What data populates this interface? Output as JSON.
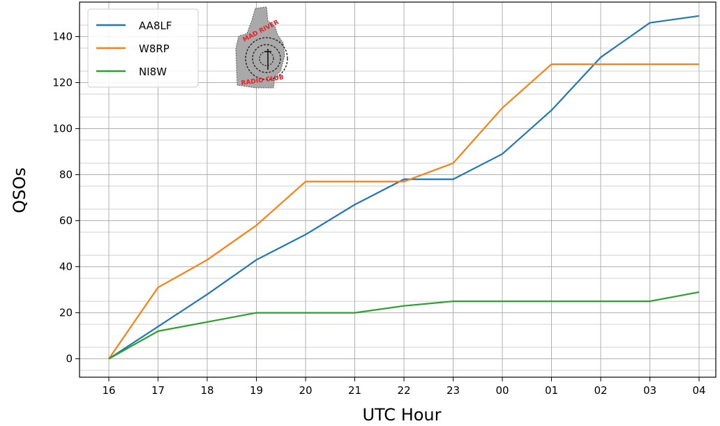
{
  "chart_data": {
    "type": "line",
    "title": "",
    "xlabel": "UTC Hour",
    "ylabel": "QSOs",
    "categories": [
      "16",
      "17",
      "18",
      "19",
      "20",
      "21",
      "22",
      "23",
      "00",
      "01",
      "02",
      "03",
      "04"
    ],
    "yticks": [
      0,
      20,
      40,
      60,
      80,
      100,
      120,
      140
    ],
    "ylim": [
      -8,
      155
    ],
    "grid": true,
    "minor_grid": true,
    "legend_position": "top-left",
    "series": [
      {
        "name": "AA8LF",
        "color": "#1f77b4",
        "values": [
          0,
          14,
          28,
          43,
          54,
          67,
          78,
          78,
          89,
          108,
          131,
          146,
          149
        ]
      },
      {
        "name": "W8RP",
        "color": "#ff7f0e",
        "values": [
          0,
          31,
          43,
          58,
          77,
          77,
          77,
          85,
          109,
          128,
          128,
          128,
          128
        ]
      },
      {
        "name": "NI8W",
        "color": "#2ca02c",
        "values": [
          0,
          12,
          16,
          20,
          20,
          20,
          23,
          25,
          25,
          25,
          25,
          25,
          29
        ]
      }
    ]
  },
  "logo": {
    "icon": "mad-river-radio-club-logo",
    "text_top": "MAD RIVER",
    "text_bottom": "RADIO CLUB"
  }
}
